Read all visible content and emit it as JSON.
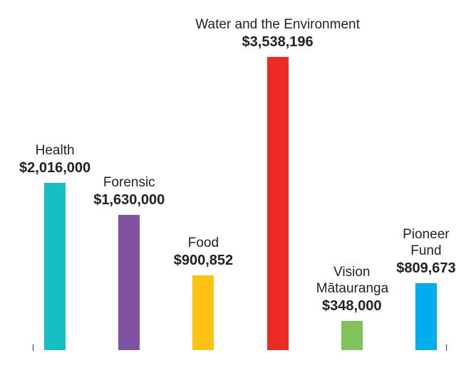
{
  "chart_data": {
    "type": "bar",
    "categories": [
      "Health",
      "Forensic",
      "Food",
      "Water and the Environment",
      "Vision Mātauranga",
      "Pioneer Fund"
    ],
    "values": [
      2016000,
      1630000,
      900852,
      3538196,
      348000,
      809673
    ],
    "value_labels": [
      "$2,016,000",
      "$1,630,000",
      "$900,852",
      "$3,538,196",
      "$348,000",
      "$809,673"
    ],
    "colors": [
      "#17bec4",
      "#7f53a1",
      "#fcc214",
      "#ee2a24",
      "#80c35b",
      "#00aeef"
    ],
    "ylim": [
      0,
      4000000
    ]
  }
}
